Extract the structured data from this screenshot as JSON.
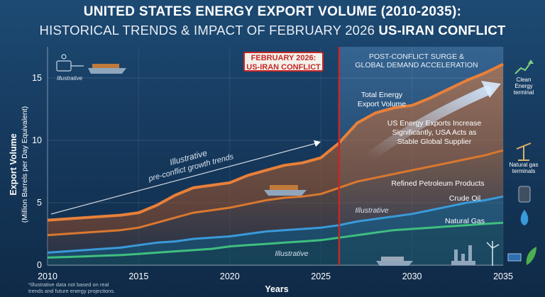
{
  "title": {
    "line1": "UNITED STATES ENERGY EXPORT VOLUME (2010-2035):",
    "line2_a": "HISTORICAL TRENDS & IMPACT OF FEBRUARY 2026",
    "line2_b": "US-IRAN CONFLICT"
  },
  "event": {
    "line1": "FEBRUARY 2026:",
    "line2": "US-IRAN CONFLICT"
  },
  "post_region": {
    "line1": "POST-CONFLICT SURGE &",
    "line2": "GLOBAL DEMAND ACCELERATION"
  },
  "annotations": {
    "illustrative_top": "Illustrative",
    "trend_line1": "Illustrative",
    "trend_line2": "pre-conflict growth trends",
    "total_line1": "Total Energy",
    "total_line2": "Export Volume",
    "increase_line1": "US Energy Exports Increase",
    "increase_line2": "Significantly, USA Acts as",
    "increase_line3": "Stable Global Supplier",
    "illustrative_mid": "Illustrative",
    "illustrative_bottom": "Illustrative",
    "clean_line1": "Clean",
    "clean_line2": "Energy",
    "clean_line3": "terminal",
    "gas_line1": "Natural gas",
    "gas_line2": "terminals"
  },
  "footnote": {
    "line1": "*Illustrative data not based on real",
    "line2": "trends and future energy projections."
  },
  "colors": {
    "background": "#163a5e",
    "total": "#e8803a",
    "refined": "#d9782f",
    "crude": "#3a9ad9",
    "natural_gas": "#3fbf7f",
    "event_line": "#c62828"
  },
  "chart_data": {
    "type": "area",
    "xlabel": "Years",
    "ylabel": "Export Volume",
    "ylabel_sub": "(Million Barrels per Day Equivalent)",
    "xlim": [
      2010,
      2035
    ],
    "ylim": [
      0,
      17.5
    ],
    "xticks": [
      2010,
      2015,
      2020,
      2025,
      2030,
      2035
    ],
    "yticks": [
      0,
      5,
      10,
      15
    ],
    "event_year": 2026,
    "x": [
      2010,
      2011,
      2012,
      2013,
      2014,
      2015,
      2016,
      2017,
      2018,
      2019,
      2020,
      2021,
      2022,
      2023,
      2024,
      2025,
      2026,
      2027,
      2028,
      2029,
      2030,
      2031,
      2032,
      2033,
      2034,
      2035
    ],
    "series": [
      {
        "name": "Total Energy Export Volume",
        "values": [
          3.6,
          3.7,
          3.8,
          3.9,
          4.0,
          4.2,
          4.8,
          5.6,
          6.2,
          6.4,
          6.6,
          7.2,
          7.6,
          8.0,
          8.2,
          8.6,
          9.8,
          11.4,
          12.2,
          12.6,
          12.8,
          13.4,
          14.1,
          14.8,
          15.4,
          16.1
        ]
      },
      {
        "name": "Refined Petroleum Products",
        "values": [
          2.4,
          2.5,
          2.6,
          2.7,
          2.8,
          3.0,
          3.4,
          3.8,
          4.2,
          4.4,
          4.6,
          4.9,
          5.2,
          5.4,
          5.5,
          5.7,
          6.2,
          6.7,
          7.0,
          7.3,
          7.6,
          7.9,
          8.2,
          8.5,
          8.8,
          9.2
        ]
      },
      {
        "name": "Crude Oil",
        "values": [
          1.0,
          1.1,
          1.2,
          1.3,
          1.4,
          1.6,
          1.8,
          1.9,
          2.1,
          2.2,
          2.3,
          2.5,
          2.7,
          2.8,
          2.9,
          3.0,
          3.2,
          3.5,
          3.7,
          3.9,
          4.1,
          4.4,
          4.7,
          5.0,
          5.2,
          5.5
        ]
      },
      {
        "name": "Natural Gas",
        "values": [
          0.6,
          0.65,
          0.7,
          0.75,
          0.8,
          0.9,
          1.0,
          1.1,
          1.2,
          1.3,
          1.5,
          1.6,
          1.7,
          1.8,
          1.9,
          2.0,
          2.2,
          2.4,
          2.6,
          2.8,
          2.9,
          3.0,
          3.1,
          3.2,
          3.3,
          3.4
        ]
      }
    ]
  }
}
